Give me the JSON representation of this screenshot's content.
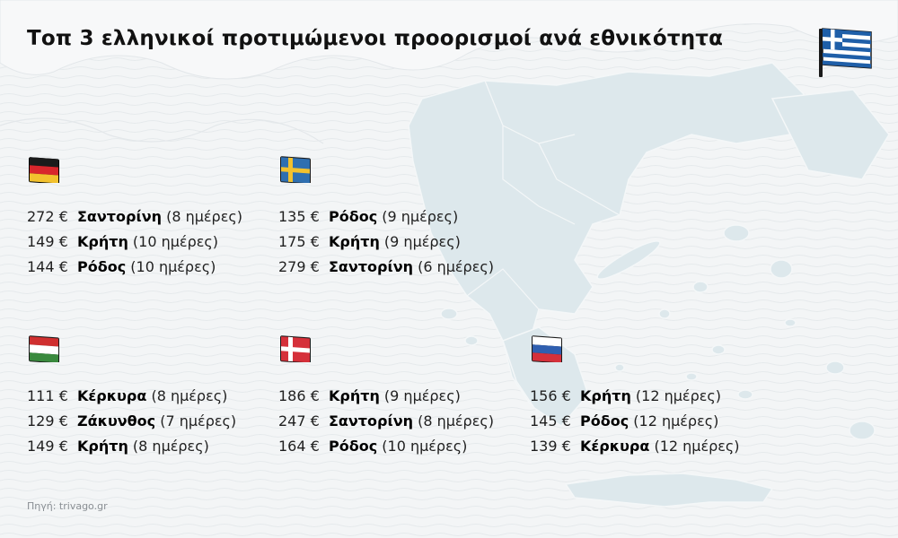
{
  "title": "Τοπ 3 ελληνικοί προτιμώμενοι προορισμοί ανά εθνικότητα",
  "source": "Πηγή: trivago.gr",
  "colors": {
    "background": "#f3f5f6",
    "map_land": "#dde8ec",
    "greece_blue": "#1f5fa8",
    "text": "#1a1a1a"
  },
  "groups": [
    {
      "flag": "germany-flag",
      "rows": [
        {
          "price": "272 €",
          "dest": "Σαντορίνη",
          "days": "(8 ημέρες)"
        },
        {
          "price": "149 €",
          "dest": "Κρήτη",
          "days": "(10 ημέρες)"
        },
        {
          "price": "144 €",
          "dest": "Ρόδος",
          "days": "(10 ημέρες)"
        }
      ]
    },
    {
      "flag": "sweden-flag",
      "rows": [
        {
          "price": "135 €",
          "dest": "Ρόδος",
          "days": " (9 ημέρες)"
        },
        {
          "price": "175 €",
          "dest": "Κρήτη",
          "days": "(9 ημέρες)"
        },
        {
          "price": "279 €",
          "dest": "Σαντορίνη",
          "days": "(6 ημέρες)"
        }
      ]
    },
    {
      "flag": "hungary-flag",
      "rows": [
        {
          "price": "111 €",
          "dest": "Κέρκυρα",
          "days": "(8 ημέρες)"
        },
        {
          "price": "129 €",
          "dest": "Ζάκυνθος",
          "days": "(7 ημέρες)"
        },
        {
          "price": "149 €",
          "dest": "Κρήτη",
          "days": "(8 ημέρες)"
        }
      ]
    },
    {
      "flag": "denmark-flag",
      "rows": [
        {
          "price": "186 €",
          "dest": "Κρήτη",
          "days": " (9 ημέρες)"
        },
        {
          "price": "247 €",
          "dest": "Σαντορίνη",
          "days": "(8 ημέρες)"
        },
        {
          "price": "164 €",
          "dest": "Ρόδος",
          "days": "(10 ημέρες)"
        }
      ]
    },
    {
      "flag": "russia-flag",
      "rows": [
        {
          "price": "156 €",
          "dest": "Κρήτη",
          "days": "(12 ημέρες)"
        },
        {
          "price": "145 €",
          "dest": "Ρόδος",
          "days": "(12 ημέρες)"
        },
        {
          "price": "139 €",
          "dest": "Κέρκυρα",
          "days": " (12 ημέρες)"
        }
      ]
    }
  ]
}
